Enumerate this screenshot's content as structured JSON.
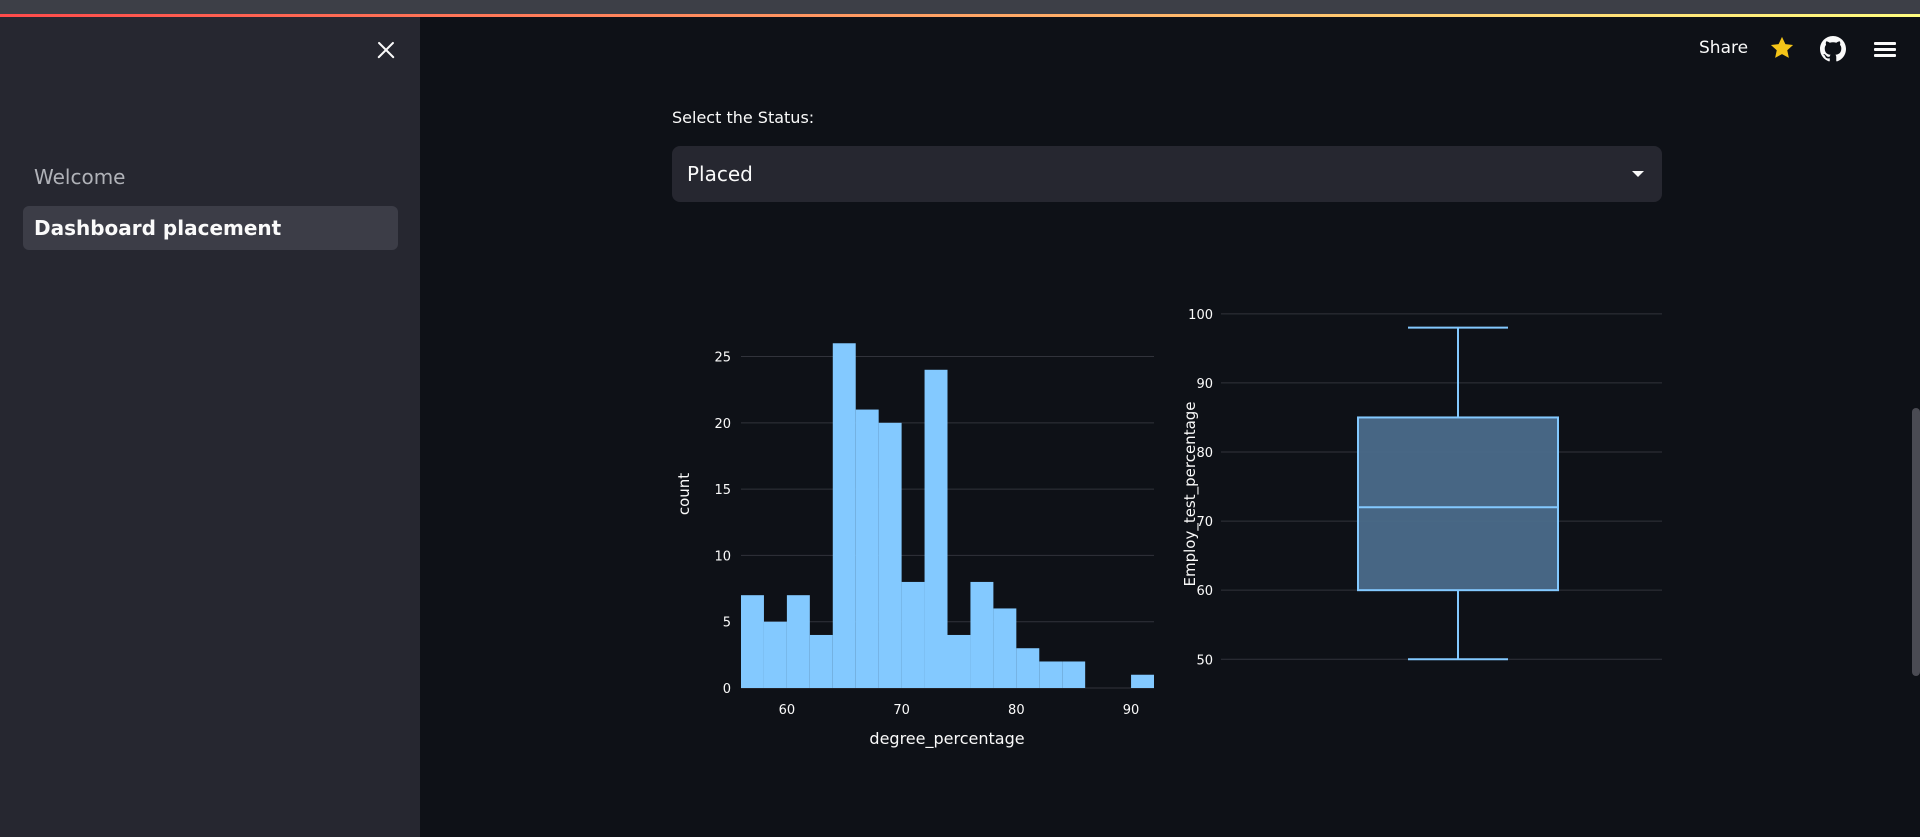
{
  "sidebar": {
    "items": [
      {
        "label": "Welcome",
        "active": false
      },
      {
        "label": "Dashboard placement",
        "active": true
      }
    ]
  },
  "header": {
    "share_label": "Share",
    "icons": [
      "star-icon",
      "github-icon",
      "hamburger-menu-icon"
    ]
  },
  "main": {
    "select_label": "Select the Status:",
    "select_value": "Placed"
  },
  "colors": {
    "background": "#0e1117",
    "sidebar": "#262730",
    "bar": "#83c9ff",
    "box_fill": "#4b6b8a",
    "star": "#f5c518"
  },
  "chart_data": [
    {
      "type": "bar",
      "subtype": "histogram",
      "xlabel": "degree_percentage",
      "ylabel": "count",
      "xlim": [
        56,
        92
      ],
      "ylim": [
        0,
        27
      ],
      "xticks": [
        60,
        70,
        80,
        90
      ],
      "yticks": [
        0,
        5,
        10,
        15,
        20,
        25
      ],
      "bin_width": 2,
      "bin_starts": [
        56,
        58,
        60,
        62,
        64,
        66,
        68,
        70,
        72,
        74,
        76,
        78,
        80,
        82,
        84,
        86,
        88,
        90
      ],
      "values": [
        7,
        5,
        7,
        4,
        26,
        21,
        20,
        8,
        24,
        4,
        8,
        6,
        3,
        2,
        2,
        0,
        0,
        1
      ],
      "grid": true
    },
    {
      "type": "box",
      "ylabel": "Employ_test_percentage",
      "ylim": [
        47,
        102
      ],
      "yticks": [
        50,
        60,
        70,
        80,
        90,
        100
      ],
      "min": 50,
      "q1": 60,
      "median": 72,
      "q3": 85,
      "max": 98,
      "grid": true
    }
  ]
}
